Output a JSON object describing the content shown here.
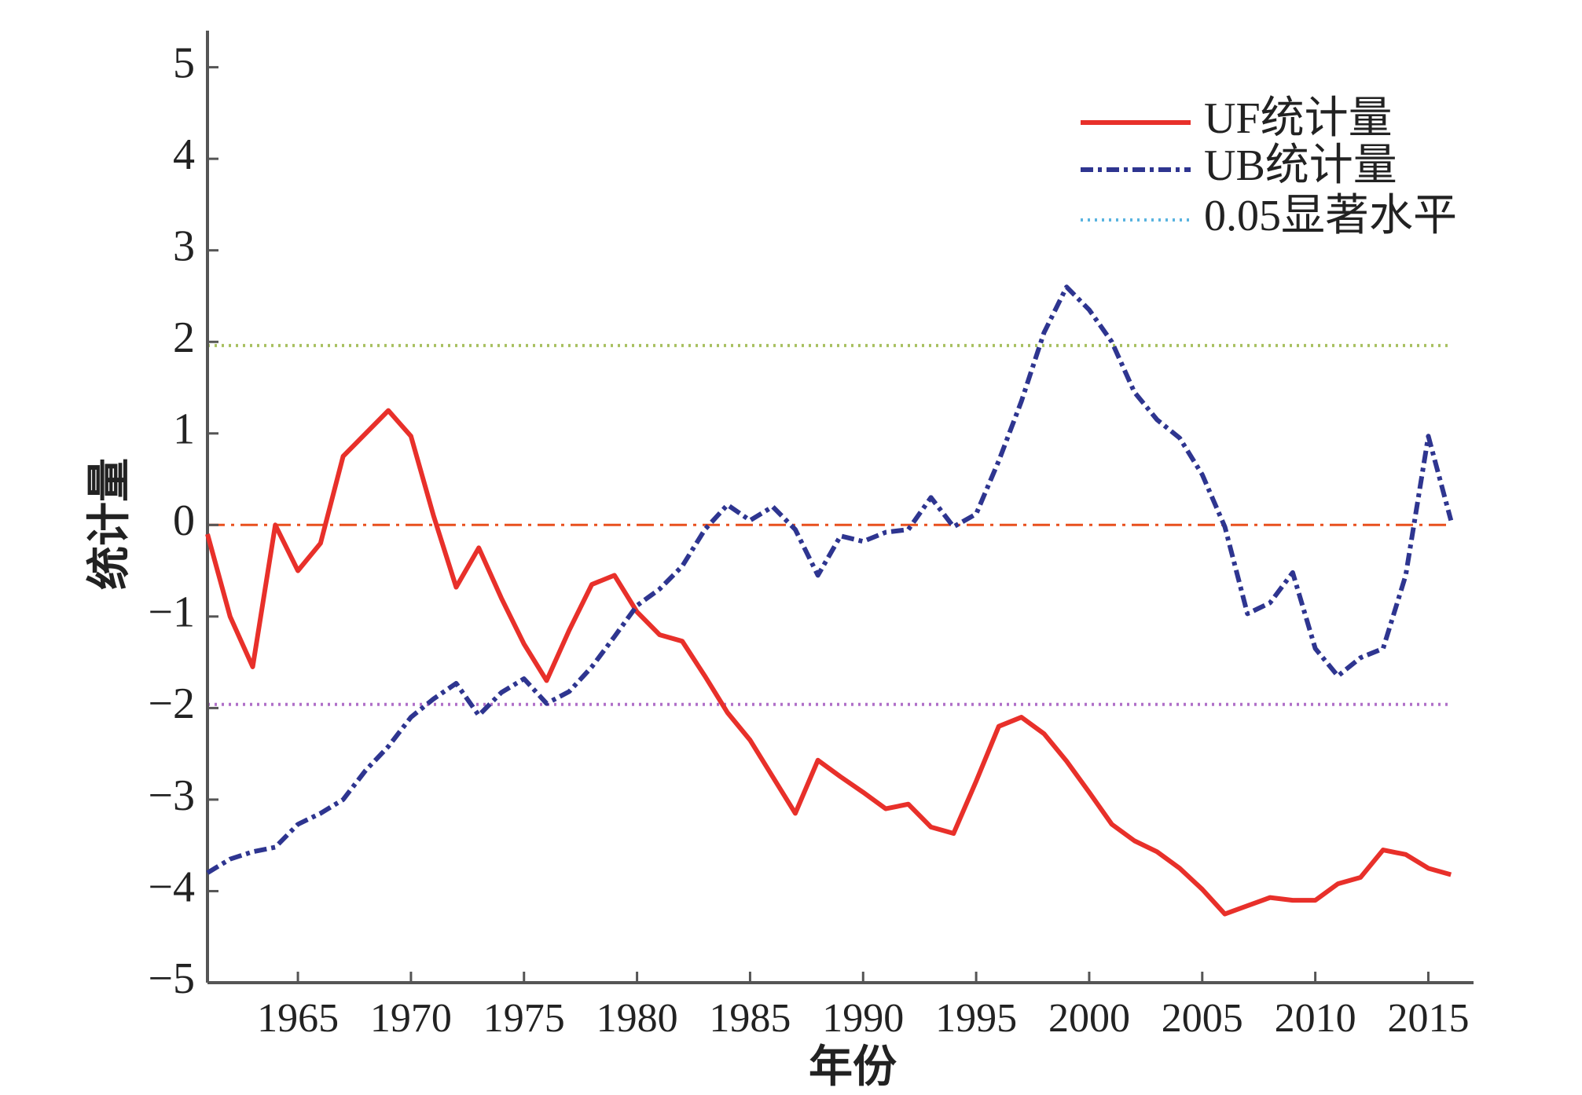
{
  "chart_data": {
    "type": "line",
    "x_label": "年份",
    "y_label": "统计量",
    "x": [
      1961,
      1962,
      1963,
      1964,
      1965,
      1966,
      1967,
      1968,
      1969,
      1970,
      1971,
      1972,
      1973,
      1974,
      1975,
      1976,
      1977,
      1978,
      1979,
      1980,
      1981,
      1982,
      1983,
      1984,
      1985,
      1986,
      1987,
      1988,
      1989,
      1990,
      1991,
      1992,
      1993,
      1994,
      1995,
      1996,
      1997,
      1998,
      1999,
      2000,
      2001,
      2002,
      2003,
      2004,
      2005,
      2006,
      2007,
      2008,
      2009,
      2010,
      2011,
      2012,
      2013,
      2014,
      2015,
      2016
    ],
    "series": [
      {
        "name": "UF统计量",
        "color": "#e8302a",
        "dash": "solid",
        "values": [
          -0.1,
          -1.0,
          -1.55,
          0.0,
          -0.5,
          -0.2,
          0.75,
          1.0,
          1.25,
          0.97,
          0.1,
          -0.68,
          -0.25,
          -0.8,
          -1.3,
          -1.7,
          -1.15,
          -0.65,
          -0.55,
          -0.95,
          -1.2,
          -1.27,
          -1.65,
          -2.05,
          -2.35,
          -2.75,
          -3.15,
          -2.57,
          -2.75,
          -2.92,
          -3.1,
          -3.05,
          -3.3,
          -3.37,
          -2.8,
          -2.2,
          -2.1,
          -2.28,
          -2.58,
          -2.92,
          -3.27,
          -3.45,
          -3.57,
          -3.75,
          -3.98,
          -4.25,
          -4.16,
          -4.07,
          -4.1,
          -4.1,
          -3.92,
          -3.85,
          -3.55,
          -3.6,
          -3.75,
          -3.82
        ]
      },
      {
        "name": "UB统计量",
        "color": "#2e3590",
        "dash": "dashdot",
        "values": [
          -3.8,
          -3.65,
          -3.57,
          -3.52,
          -3.27,
          -3.15,
          -3.0,
          -2.68,
          -2.42,
          -2.1,
          -1.9,
          -1.73,
          -2.08,
          -1.83,
          -1.68,
          -1.95,
          -1.82,
          -1.55,
          -1.22,
          -0.88,
          -0.7,
          -0.45,
          -0.05,
          0.22,
          0.05,
          0.2,
          -0.05,
          -0.55,
          -0.12,
          -0.18,
          -0.08,
          -0.05,
          0.3,
          -0.02,
          0.12,
          0.7,
          1.35,
          2.1,
          2.6,
          2.35,
          2.0,
          1.45,
          1.15,
          0.95,
          0.55,
          -0.02,
          -0.97,
          -0.85,
          -0.52,
          -1.35,
          -1.65,
          -1.45,
          -1.35,
          -0.55,
          0.97,
          0.05
        ]
      }
    ],
    "significance": {
      "name": "0.05显著水平",
      "color": "#5ab4e0",
      "lines": [
        {
          "value": 1.96,
          "color": "#a8c060"
        },
        {
          "value": -1.96,
          "color": "#b070c8"
        }
      ]
    },
    "zero_line": {
      "value": 0,
      "color": "#e8501e"
    },
    "xlim": [
      1961,
      2017
    ],
    "ylim": [
      -5,
      5.4
    ],
    "xticks": [
      1965,
      1970,
      1975,
      1980,
      1985,
      1990,
      1995,
      2000,
      2005,
      2010,
      2015
    ],
    "yticks": [
      {
        "value": -5,
        "label": "−5"
      },
      {
        "value": -4,
        "label": "−4"
      },
      {
        "value": -3,
        "label": "−3"
      },
      {
        "value": -2,
        "label": "−2"
      },
      {
        "value": -1,
        "label": "−1"
      },
      0,
      1,
      2,
      3,
      4,
      5
    ],
    "legend": "upper right"
  }
}
